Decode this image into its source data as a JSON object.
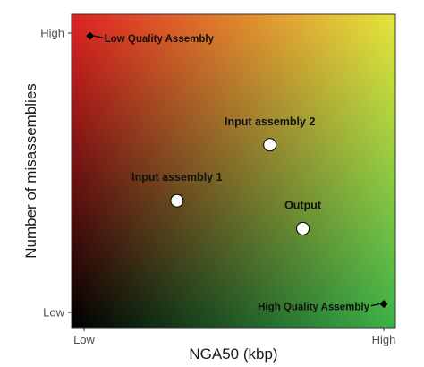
{
  "chart_data": {
    "type": "scatter",
    "title": "",
    "xlabel": "NGA50 (kbp)",
    "ylabel": "Number of misassemblies",
    "xlim": [
      0,
      1
    ],
    "ylim": [
      0,
      1
    ],
    "x_ticks": [
      {
        "value": 0,
        "label": "Low"
      },
      {
        "value": 1,
        "label": "High"
      }
    ],
    "y_ticks": [
      {
        "value": 0,
        "label": "Low"
      },
      {
        "value": 1,
        "label": "High"
      }
    ],
    "grid": false,
    "legend": "none",
    "background_gradient": {
      "bottom_left": "#000000",
      "top_left": "#e02222",
      "top_right": "#e6e63a",
      "bottom_right": "#3cb34a"
    },
    "points": [
      {
        "label": "Input assembly 1",
        "x": 0.31,
        "y": 0.4,
        "marker": "circle",
        "color": "#ffffff"
      },
      {
        "label": "Input assembly 2",
        "x": 0.62,
        "y": 0.6,
        "marker": "circle",
        "color": "#ffffff"
      },
      {
        "label": "Output",
        "x": 0.73,
        "y": 0.3,
        "marker": "circle",
        "color": "#ffffff"
      }
    ],
    "annotations": [
      {
        "label": "Low Quality Assembly",
        "x": 0.02,
        "y": 0.99,
        "marker": "diamond",
        "color": "#000000",
        "label_side": "right"
      },
      {
        "label": "High Quality Assembly",
        "x": 1.0,
        "y": 0.03,
        "marker": "diamond",
        "color": "#000000",
        "label_side": "left"
      }
    ]
  }
}
